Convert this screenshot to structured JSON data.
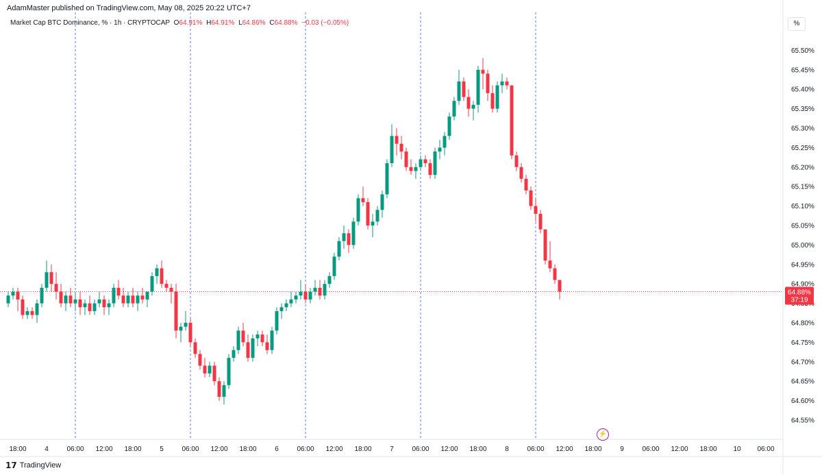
{
  "published": "AdamMaster published on TradingView.com, May 08, 2025 20:22 UTC+7",
  "legend": {
    "symbol": "Market Cap BTC Dominance, % · 1h · CRYPTOCAP",
    "o_key": "O",
    "o_val": "64.91%",
    "h_key": "H",
    "h_val": "64.91%",
    "l_key": "L",
    "l_val": "64.86%",
    "c_key": "C",
    "c_val": "64.88%",
    "change": "−0.03 (−0.05%)"
  },
  "scale_mode": "%",
  "price_label": {
    "value": "64.88%",
    "countdown": "37:19"
  },
  "footer": {
    "brand": "TradingView",
    "logo": "tradingview-logo-icon"
  },
  "colors": {
    "up": "#089981",
    "down": "#f23645",
    "session_line": "#2962ff",
    "price_line": "#f23645",
    "grid_text": "#131722"
  },
  "chart_data": {
    "type": "candlestick",
    "y_unit": "%",
    "ylim": [
      64.52,
      65.55
    ],
    "y_ticks": [
      "65.50%",
      "65.45%",
      "65.40%",
      "65.35%",
      "65.30%",
      "65.25%",
      "65.20%",
      "65.15%",
      "65.10%",
      "65.05%",
      "65.00%",
      "64.95%",
      "64.90%",
      "64.85%",
      "64.80%",
      "64.75%",
      "64.70%",
      "64.65%",
      "64.60%",
      "64.55%"
    ],
    "y_tick_values": [
      65.5,
      65.45,
      65.4,
      65.35,
      65.3,
      65.25,
      65.2,
      65.15,
      65.1,
      65.05,
      65.0,
      64.95,
      64.9,
      64.85,
      64.8,
      64.75,
      64.7,
      64.65,
      64.6,
      64.55
    ],
    "x_tick_labels": [
      "18:00",
      "4",
      "06:00",
      "12:00",
      "18:00",
      "5",
      "06:00",
      "12:00",
      "18:00",
      "6",
      "06:00",
      "12:00",
      "18:00",
      "7",
      "06:00",
      "12:00",
      "18:00",
      "8",
      "06:00",
      "12:00",
      "18:00",
      "9",
      "06:00",
      "12:00",
      "18:00",
      "10",
      "06:00"
    ],
    "x_tick_bar_index": [
      2,
      8,
      14,
      20,
      26,
      32,
      38,
      44,
      50,
      56,
      62,
      68,
      74,
      80,
      86,
      92,
      98,
      104,
      110,
      116,
      122,
      128,
      134,
      140,
      146,
      152,
      158
    ],
    "session_break_bar_index": [
      14,
      38,
      62,
      86,
      110
    ],
    "last_price": 64.88,
    "ohlc": [
      [
        64.85,
        64.88,
        64.84,
        64.87
      ],
      [
        64.87,
        64.89,
        64.86,
        64.88
      ],
      [
        64.88,
        64.89,
        64.83,
        64.86
      ],
      [
        64.86,
        64.87,
        64.81,
        64.82
      ],
      [
        64.82,
        64.84,
        64.81,
        64.83
      ],
      [
        64.83,
        64.84,
        64.81,
        64.82
      ],
      [
        64.82,
        64.86,
        64.8,
        64.85
      ],
      [
        64.85,
        64.9,
        64.84,
        64.89
      ],
      [
        64.89,
        64.96,
        64.88,
        64.93
      ],
      [
        64.93,
        64.95,
        64.88,
        64.9
      ],
      [
        64.9,
        64.93,
        64.86,
        64.88
      ],
      [
        64.88,
        64.9,
        64.84,
        64.85
      ],
      [
        64.85,
        64.88,
        64.83,
        64.87
      ],
      [
        64.87,
        64.89,
        64.84,
        64.85
      ],
      [
        64.85,
        64.88,
        64.83,
        64.86
      ],
      [
        64.86,
        64.88,
        64.82,
        64.84
      ],
      [
        64.84,
        64.86,
        64.82,
        64.85
      ],
      [
        64.85,
        64.87,
        64.82,
        64.83
      ],
      [
        64.83,
        64.86,
        64.82,
        64.85
      ],
      [
        64.85,
        64.88,
        64.84,
        64.86
      ],
      [
        64.86,
        64.87,
        64.82,
        64.84
      ],
      [
        64.84,
        64.86,
        64.82,
        64.85
      ],
      [
        64.85,
        64.9,
        64.84,
        64.89
      ],
      [
        64.89,
        64.91,
        64.86,
        64.87
      ],
      [
        64.87,
        64.89,
        64.84,
        64.85
      ],
      [
        64.85,
        64.88,
        64.84,
        64.87
      ],
      [
        64.87,
        64.89,
        64.84,
        64.85
      ],
      [
        64.85,
        64.88,
        64.83,
        64.87
      ],
      [
        64.87,
        64.89,
        64.85,
        64.86
      ],
      [
        64.86,
        64.88,
        64.84,
        64.88
      ],
      [
        64.88,
        64.93,
        64.87,
        64.92
      ],
      [
        64.92,
        64.95,
        64.9,
        64.94
      ],
      [
        64.94,
        64.96,
        64.89,
        64.9
      ],
      [
        64.9,
        64.91,
        64.88,
        64.89
      ],
      [
        64.89,
        64.9,
        64.85,
        64.88
      ],
      [
        64.88,
        64.9,
        64.76,
        64.78
      ],
      [
        64.78,
        64.8,
        64.75,
        64.79
      ],
      [
        64.79,
        64.83,
        64.78,
        64.8
      ],
      [
        64.8,
        64.81,
        64.74,
        64.75
      ],
      [
        64.75,
        64.76,
        64.71,
        64.72
      ],
      [
        64.72,
        64.73,
        64.68,
        64.69
      ],
      [
        64.69,
        64.71,
        64.66,
        64.67
      ],
      [
        64.67,
        64.7,
        64.66,
        64.69
      ],
      [
        64.69,
        64.7,
        64.64,
        64.65
      ],
      [
        64.65,
        64.66,
        64.6,
        64.61
      ],
      [
        64.61,
        64.65,
        64.59,
        64.64
      ],
      [
        64.64,
        64.72,
        64.63,
        64.71
      ],
      [
        64.71,
        64.74,
        64.7,
        64.73
      ],
      [
        64.73,
        64.79,
        64.72,
        64.78
      ],
      [
        64.78,
        64.8,
        64.74,
        64.75
      ],
      [
        64.75,
        64.77,
        64.7,
        64.71
      ],
      [
        64.71,
        64.77,
        64.7,
        64.76
      ],
      [
        64.76,
        64.78,
        64.74,
        64.77
      ],
      [
        64.77,
        64.78,
        64.74,
        64.75
      ],
      [
        64.75,
        64.77,
        64.72,
        64.73
      ],
      [
        64.73,
        64.79,
        64.72,
        64.78
      ],
      [
        64.78,
        64.84,
        64.77,
        64.83
      ],
      [
        64.83,
        64.85,
        64.81,
        64.84
      ],
      [
        64.84,
        64.86,
        64.83,
        64.85
      ],
      [
        64.85,
        64.88,
        64.84,
        64.86
      ],
      [
        64.86,
        64.88,
        64.85,
        64.87
      ],
      [
        64.87,
        64.91,
        64.86,
        64.88
      ],
      [
        64.88,
        64.9,
        64.85,
        64.86
      ],
      [
        64.86,
        64.89,
        64.85,
        64.88
      ],
      [
        64.88,
        64.91,
        64.87,
        64.89
      ],
      [
        64.89,
        64.91,
        64.86,
        64.87
      ],
      [
        64.87,
        64.91,
        64.86,
        64.9
      ],
      [
        64.9,
        64.93,
        64.89,
        64.92
      ],
      [
        64.92,
        64.98,
        64.91,
        64.97
      ],
      [
        64.97,
        65.02,
        64.96,
        65.01
      ],
      [
        65.01,
        65.05,
        64.99,
        65.03
      ],
      [
        65.03,
        65.04,
        64.98,
        65.0
      ],
      [
        65.0,
        65.07,
        64.99,
        65.06
      ],
      [
        65.06,
        65.13,
        65.05,
        65.12
      ],
      [
        65.12,
        65.15,
        65.1,
        65.11
      ],
      [
        65.11,
        65.12,
        65.04,
        65.05
      ],
      [
        65.05,
        65.08,
        65.02,
        65.06
      ],
      [
        65.06,
        65.1,
        65.05,
        65.09
      ],
      [
        65.09,
        65.14,
        65.07,
        65.13
      ],
      [
        65.13,
        65.22,
        65.12,
        65.21
      ],
      [
        65.21,
        65.31,
        65.2,
        65.28
      ],
      [
        65.28,
        65.3,
        65.23,
        65.26
      ],
      [
        65.26,
        65.28,
        65.22,
        65.24
      ],
      [
        65.24,
        65.25,
        65.19,
        65.2
      ],
      [
        65.2,
        65.22,
        65.18,
        65.19
      ],
      [
        65.19,
        65.21,
        65.17,
        65.2
      ],
      [
        65.2,
        65.23,
        65.19,
        65.22
      ],
      [
        65.22,
        65.23,
        65.2,
        65.21
      ],
      [
        65.21,
        65.22,
        65.17,
        65.18
      ],
      [
        65.18,
        65.25,
        65.17,
        65.24
      ],
      [
        65.24,
        65.27,
        65.22,
        65.25
      ],
      [
        65.25,
        65.29,
        65.23,
        65.28
      ],
      [
        65.28,
        65.34,
        65.27,
        65.33
      ],
      [
        65.33,
        65.38,
        65.32,
        65.37
      ],
      [
        65.37,
        65.45,
        65.36,
        65.42
      ],
      [
        65.42,
        65.43,
        65.37,
        65.38
      ],
      [
        65.38,
        65.4,
        65.33,
        65.35
      ],
      [
        65.35,
        65.37,
        65.32,
        65.36
      ],
      [
        65.36,
        65.46,
        65.34,
        65.45
      ],
      [
        65.45,
        65.48,
        65.4,
        65.44
      ],
      [
        65.44,
        65.45,
        65.37,
        65.39
      ],
      [
        65.39,
        65.41,
        65.34,
        65.35
      ],
      [
        65.35,
        65.42,
        65.34,
        65.41
      ],
      [
        65.41,
        65.44,
        65.39,
        65.42
      ],
      [
        65.42,
        65.43,
        65.4,
        65.41
      ],
      [
        65.41,
        65.41,
        65.22,
        65.23
      ],
      [
        65.23,
        65.24,
        65.19,
        65.2
      ],
      [
        65.2,
        65.21,
        65.16,
        65.17
      ],
      [
        65.17,
        65.18,
        65.13,
        65.14
      ],
      [
        65.14,
        65.15,
        65.09,
        65.1
      ],
      [
        65.1,
        65.12,
        65.06,
        65.08
      ],
      [
        65.08,
        65.09,
        65.03,
        65.04
      ],
      [
        65.04,
        65.04,
        64.95,
        64.96
      ],
      [
        64.96,
        65.01,
        64.93,
        64.94
      ],
      [
        64.94,
        64.95,
        64.9,
        64.91
      ],
      [
        64.91,
        64.91,
        64.86,
        64.88
      ]
    ]
  }
}
